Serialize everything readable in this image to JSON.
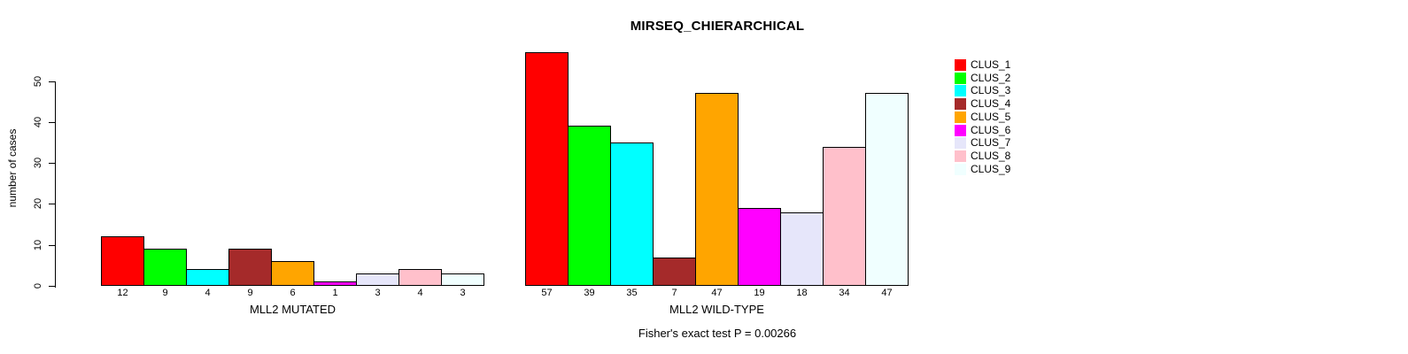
{
  "chart_data": {
    "type": "bar",
    "title": "MIRSEQ_CHIERARCHICAL",
    "ylabel": "number of cases",
    "xlabel": "",
    "ylim": [
      0,
      50
    ],
    "yticks": [
      0,
      10,
      20,
      30,
      40,
      50
    ],
    "grid": false,
    "legend_position": "right",
    "series_names": [
      "CLUS_1",
      "CLUS_2",
      "CLUS_3",
      "CLUS_4",
      "CLUS_5",
      "CLUS_6",
      "CLUS_7",
      "CLUS_8",
      "CLUS_9"
    ],
    "colors": [
      "#FF0000",
      "#00FF00",
      "#00FFFF",
      "#A52A2A",
      "#FFA500",
      "#FF00FF",
      "#E6E6FA",
      "#FFC0CB",
      "#F0FFFF"
    ],
    "bar_border_color": "#000000",
    "groups": [
      {
        "label": "MLL2 MUTATED",
        "values": [
          12,
          9,
          4,
          9,
          6,
          1,
          3,
          4,
          3
        ]
      },
      {
        "label": "MLL2 WILD-TYPE",
        "values": [
          57,
          39,
          35,
          7,
          47,
          19,
          18,
          34,
          47
        ]
      }
    ],
    "bar_value_labels_shown": true,
    "annotation": "Fisher's exact test P = 0.00266"
  }
}
